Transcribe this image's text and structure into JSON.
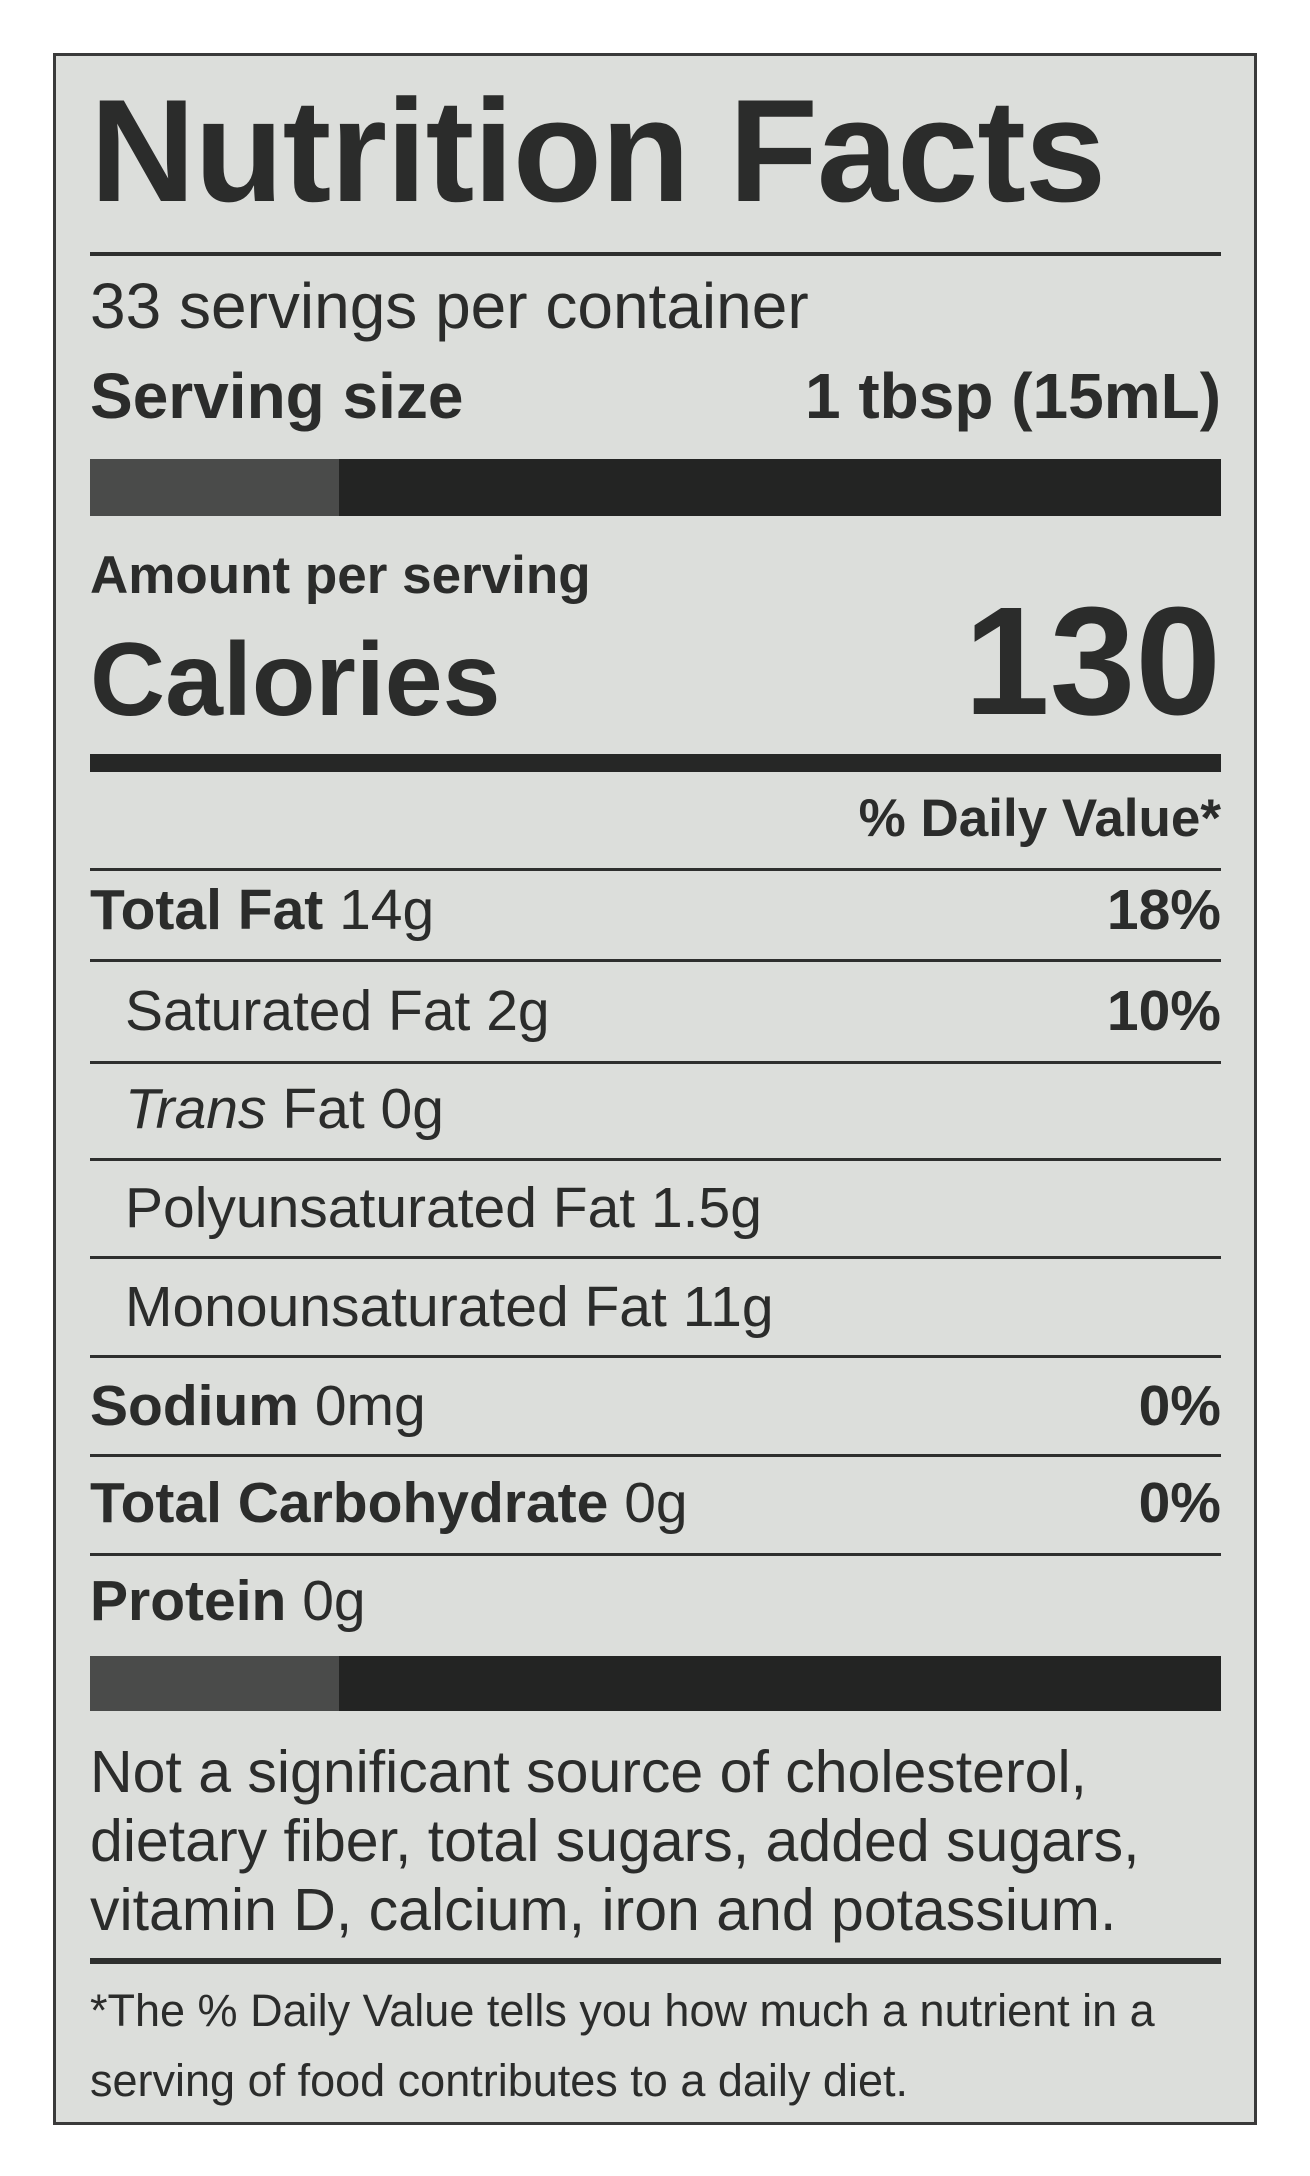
{
  "title": "Nutrition Facts",
  "servings_per_container": "33 servings per container",
  "serving_size": {
    "label": "Serving size",
    "value": "1 tbsp (15mL)"
  },
  "amount_per_serving": {
    "prefix": "Amount per",
    "suffix": "serving"
  },
  "calories": {
    "label": "Calories",
    "value": "130"
  },
  "daily_value_header": "% Daily Value*",
  "nutrients": [
    {
      "name": "Total Fat",
      "amount": "14g",
      "dv": "18%"
    },
    {
      "name": "Saturated Fat",
      "amount": "2g",
      "dv": "10%"
    },
    {
      "name_italic": "Trans",
      "name": "Fat",
      "amount": "0g"
    },
    {
      "name": "Polyunsaturated Fat",
      "amount": "1.5g"
    },
    {
      "name": "Monounsaturated Fat",
      "amount": "11g"
    },
    {
      "name": "Sodium",
      "amount": "0mg",
      "dv": "0%"
    },
    {
      "name": "Total Carbohydrate",
      "amount": "0g",
      "dv": "0%"
    },
    {
      "name": "Protein",
      "amount": "0g"
    }
  ],
  "not_significant": [
    "Not a significant source of cholesterol,",
    "dietary fiber, total sugars, added sugars,",
    "vitamin D, calcium, iron and potassium."
  ],
  "footnote": [
    "*The % Daily Value tells you how much a nutrient in a",
    "serving of food contributes to a daily diet."
  ],
  "colors": {
    "label_background": "#dcdedb",
    "ink": "#2b2c2b"
  }
}
